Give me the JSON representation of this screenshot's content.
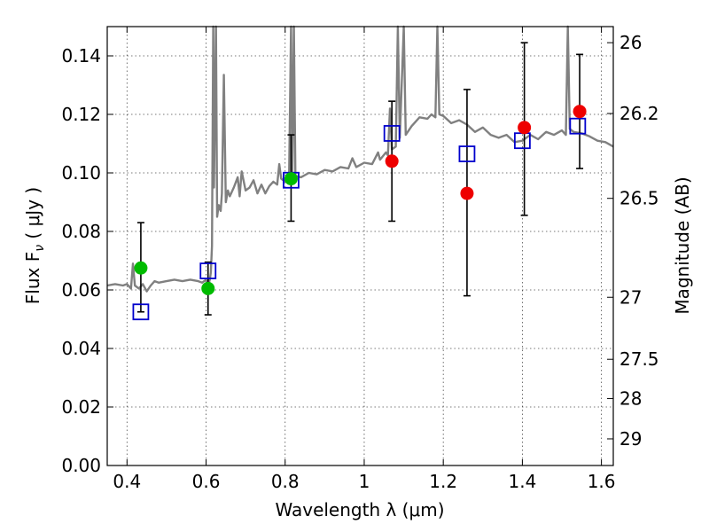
{
  "chart_data": {
    "type": "scatter",
    "title": "",
    "xlabel": "Wavelength  λ (μm)",
    "ylabel": "Flux  F",
    "ylabel_sub": "ν",
    "ylabel_unit": "  ( μJy )",
    "y2label": "Magnitude (AB)",
    "xlim": [
      0.35,
      1.63
    ],
    "ylim": [
      0.0,
      0.15
    ],
    "grid": true,
    "x_ticks": [
      0.4,
      0.6,
      0.8,
      1.0,
      1.2,
      1.4,
      1.6
    ],
    "x_tick_labels": [
      "0.4",
      "0.6",
      "0.8",
      "1",
      "1.2",
      "1.4",
      "1.6"
    ],
    "y_ticks": [
      0.0,
      0.02,
      0.04,
      0.06,
      0.08,
      0.1,
      0.12,
      0.14
    ],
    "y_tick_labels": [
      "0.00",
      "0.02",
      "0.04",
      "0.06",
      "0.08",
      "0.10",
      "0.12",
      "0.14"
    ],
    "y2_ticks": [
      {
        "flux": 0.1445,
        "label": "26"
      },
      {
        "flux": 0.1203,
        "label": "26.2"
      },
      {
        "flux": 0.0913,
        "label": "26.5"
      },
      {
        "flux": 0.0575,
        "label": "27"
      },
      {
        "flux": 0.0363,
        "label": "27.5"
      },
      {
        "flux": 0.0229,
        "label": "28"
      },
      {
        "flux": 0.0091,
        "label": "29"
      }
    ],
    "colors": {
      "spectrum": "#808080",
      "model": "#0000cc",
      "green": "#00bb00",
      "red": "#ee0000",
      "errorbar": "#000000"
    },
    "model_points": [
      {
        "x": 0.435,
        "y": 0.0525
      },
      {
        "x": 0.605,
        "y": 0.0665
      },
      {
        "x": 0.815,
        "y": 0.0975
      },
      {
        "x": 1.07,
        "y": 0.1135
      },
      {
        "x": 1.26,
        "y": 0.1065
      },
      {
        "x": 1.4,
        "y": 0.111
      },
      {
        "x": 1.54,
        "y": 0.116
      }
    ],
    "observed_points": [
      {
        "x": 0.435,
        "y": 0.0675,
        "yerr_low": 0.0525,
        "yerr_high": 0.083,
        "color": "green"
      },
      {
        "x": 0.605,
        "y": 0.0605,
        "yerr_low": 0.0515,
        "yerr_high": 0.0695,
        "color": "green"
      },
      {
        "x": 0.815,
        "y": 0.098,
        "yerr_low": 0.0835,
        "yerr_high": 0.113,
        "color": "green"
      },
      {
        "x": 1.07,
        "y": 0.104,
        "yerr_low": 0.0835,
        "yerr_high": 0.1245,
        "color": "red"
      },
      {
        "x": 1.26,
        "y": 0.093,
        "yerr_low": 0.058,
        "yerr_high": 0.1285,
        "color": "red"
      },
      {
        "x": 1.405,
        "y": 0.1155,
        "yerr_low": 0.0855,
        "yerr_high": 0.1445,
        "color": "red"
      },
      {
        "x": 1.545,
        "y": 0.121,
        "yerr_low": 0.1015,
        "yerr_high": 0.1405,
        "color": "red"
      }
    ],
    "spectrum": [
      [
        0.35,
        0.0615
      ],
      [
        0.37,
        0.062
      ],
      [
        0.39,
        0.0615
      ],
      [
        0.4,
        0.062
      ],
      [
        0.41,
        0.0605
      ],
      [
        0.415,
        0.069
      ],
      [
        0.42,
        0.0615
      ],
      [
        0.43,
        0.0605
      ],
      [
        0.44,
        0.062
      ],
      [
        0.45,
        0.0595
      ],
      [
        0.46,
        0.0615
      ],
      [
        0.47,
        0.063
      ],
      [
        0.48,
        0.0625
      ],
      [
        0.5,
        0.063
      ],
      [
        0.52,
        0.0635
      ],
      [
        0.54,
        0.063
      ],
      [
        0.56,
        0.0635
      ],
      [
        0.58,
        0.063
      ],
      [
        0.59,
        0.0625
      ],
      [
        0.6,
        0.0635
      ],
      [
        0.605,
        0.061
      ],
      [
        0.61,
        0.064
      ],
      [
        0.612,
        0.066
      ],
      [
        0.615,
        0.075
      ],
      [
        0.618,
        0.15
      ],
      [
        0.62,
        0.095
      ],
      [
        0.625,
        0.15
      ],
      [
        0.628,
        0.085
      ],
      [
        0.632,
        0.089
      ],
      [
        0.637,
        0.087
      ],
      [
        0.64,
        0.093
      ],
      [
        0.645,
        0.1335
      ],
      [
        0.65,
        0.09
      ],
      [
        0.655,
        0.094
      ],
      [
        0.66,
        0.092
      ],
      [
        0.67,
        0.095
      ],
      [
        0.68,
        0.0985
      ],
      [
        0.685,
        0.092
      ],
      [
        0.69,
        0.1005
      ],
      [
        0.7,
        0.094
      ],
      [
        0.71,
        0.095
      ],
      [
        0.72,
        0.0975
      ],
      [
        0.73,
        0.093
      ],
      [
        0.74,
        0.096
      ],
      [
        0.75,
        0.093
      ],
      [
        0.76,
        0.0955
      ],
      [
        0.77,
        0.097
      ],
      [
        0.78,
        0.096
      ],
      [
        0.785,
        0.103
      ],
      [
        0.79,
        0.098
      ],
      [
        0.8,
        0.097
      ],
      [
        0.81,
        0.099
      ],
      [
        0.815,
        0.15
      ],
      [
        0.818,
        0.097
      ],
      [
        0.822,
        0.15
      ],
      [
        0.826,
        0.099
      ],
      [
        0.84,
        0.0985
      ],
      [
        0.86,
        0.1
      ],
      [
        0.88,
        0.0995
      ],
      [
        0.9,
        0.101
      ],
      [
        0.92,
        0.1005
      ],
      [
        0.94,
        0.102
      ],
      [
        0.96,
        0.1015
      ],
      [
        0.97,
        0.105
      ],
      [
        0.98,
        0.102
      ],
      [
        1.0,
        0.1035
      ],
      [
        1.02,
        0.103
      ],
      [
        1.035,
        0.107
      ],
      [
        1.04,
        0.1045
      ],
      [
        1.055,
        0.107
      ],
      [
        1.06,
        0.106
      ],
      [
        1.065,
        0.122
      ],
      [
        1.07,
        0.108
      ],
      [
        1.08,
        0.109
      ],
      [
        1.085,
        0.15
      ],
      [
        1.09,
        0.112
      ],
      [
        1.1,
        0.15
      ],
      [
        1.105,
        0.113
      ],
      [
        1.12,
        0.116
      ],
      [
        1.14,
        0.119
      ],
      [
        1.16,
        0.1185
      ],
      [
        1.17,
        0.12
      ],
      [
        1.18,
        0.119
      ],
      [
        1.185,
        0.15
      ],
      [
        1.19,
        0.12
      ],
      [
        1.2,
        0.1195
      ],
      [
        1.22,
        0.117
      ],
      [
        1.24,
        0.118
      ],
      [
        1.26,
        0.1165
      ],
      [
        1.28,
        0.114
      ],
      [
        1.3,
        0.1155
      ],
      [
        1.32,
        0.113
      ],
      [
        1.34,
        0.112
      ],
      [
        1.36,
        0.113
      ],
      [
        1.38,
        0.1105
      ],
      [
        1.4,
        0.111
      ],
      [
        1.42,
        0.113
      ],
      [
        1.44,
        0.1115
      ],
      [
        1.46,
        0.114
      ],
      [
        1.48,
        0.113
      ],
      [
        1.5,
        0.1145
      ],
      [
        1.51,
        0.113
      ],
      [
        1.515,
        0.15
      ],
      [
        1.52,
        0.115
      ],
      [
        1.53,
        0.114
      ],
      [
        1.55,
        0.1135
      ],
      [
        1.57,
        0.1125
      ],
      [
        1.59,
        0.111
      ],
      [
        1.61,
        0.1105
      ],
      [
        1.63,
        0.109
      ]
    ]
  }
}
